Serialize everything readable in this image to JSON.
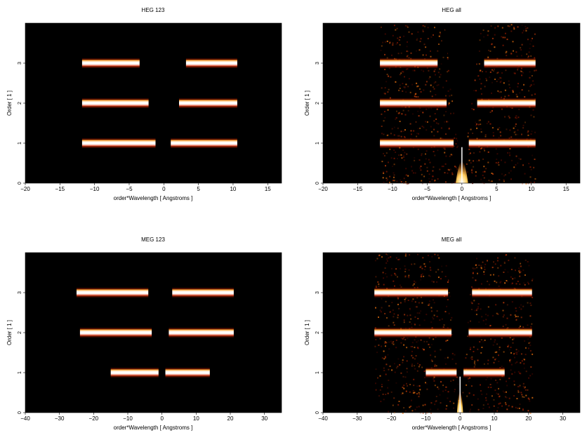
{
  "chart_data": [
    {
      "type": "heatmap",
      "title": "HEG 123",
      "xlabel": "order*Wavelength [ Angstroms ]",
      "ylabel": "Order [ 1 ]",
      "xlim": [
        -20,
        17
      ],
      "ylim": [
        0,
        4
      ],
      "xticks": [
        -20,
        -15,
        -10,
        -5,
        0,
        5,
        10,
        15
      ],
      "yticks": [
        0,
        1,
        2,
        3
      ],
      "background": "#000000",
      "orders": [
        {
          "order": 1,
          "segments": [
            [
              -11.8,
              -1.2
            ],
            [
              1.0,
              10.6
            ]
          ]
        },
        {
          "order": 2,
          "segments": [
            [
              -11.8,
              -2.2
            ],
            [
              2.2,
              10.6
            ]
          ]
        },
        {
          "order": 3,
          "segments": [
            [
              -11.8,
              -3.5
            ],
            [
              3.2,
              10.6
            ]
          ]
        }
      ],
      "diffuse": false
    },
    {
      "type": "heatmap",
      "title": "HEG all",
      "xlabel": "order*Wavelength [ Angstroms ]",
      "ylabel": "Order [ 1 ]",
      "xlim": [
        -20,
        17
      ],
      "ylim": [
        0,
        4
      ],
      "xticks": [
        -20,
        -15,
        -10,
        -5,
        0,
        5,
        10,
        15
      ],
      "yticks": [
        0,
        1,
        2,
        3
      ],
      "background": "#000000",
      "orders": [
        {
          "order": 1,
          "segments": [
            [
              -11.8,
              -1.2
            ],
            [
              1.0,
              10.6
            ]
          ]
        },
        {
          "order": 2,
          "segments": [
            [
              -11.8,
              -2.2
            ],
            [
              2.2,
              10.6
            ]
          ]
        },
        {
          "order": 3,
          "segments": [
            [
              -11.8,
              -3.5
            ],
            [
              3.2,
              10.6
            ]
          ]
        }
      ],
      "diffuse": true,
      "vee_top": [
        -2.5,
        2.8
      ],
      "zeroth_order": 0.0
    },
    {
      "type": "heatmap",
      "title": "MEG 123",
      "xlabel": "order*Wavelength [ Angstroms ]",
      "ylabel": "Order [ 1 ]",
      "xlim": [
        -40,
        35
      ],
      "ylim": [
        0,
        4
      ],
      "xticks": [
        -40,
        -30,
        -20,
        -10,
        0,
        10,
        20,
        30
      ],
      "yticks": [
        0,
        1,
        2,
        3
      ],
      "background": "#000000",
      "orders": [
        {
          "order": 1,
          "segments": [
            [
              -15.0,
              -1.0
            ],
            [
              1.0,
              14.0
            ]
          ]
        },
        {
          "order": 2,
          "segments": [
            [
              -24.0,
              -3.0
            ],
            [
              2.0,
              21.0
            ]
          ]
        },
        {
          "order": 3,
          "segments": [
            [
              -25.0,
              -4.0
            ],
            [
              3.0,
              21.0
            ]
          ]
        }
      ],
      "diffuse": false
    },
    {
      "type": "heatmap",
      "title": "MEG all",
      "xlabel": "order*Wavelength [ Angstroms ]",
      "ylabel": "Order [ 1 ]",
      "xlim": [
        -40,
        35
      ],
      "ylim": [
        0,
        4
      ],
      "xticks": [
        -40,
        -30,
        -20,
        -10,
        0,
        10,
        20,
        30
      ],
      "yticks": [
        0,
        1,
        2,
        3
      ],
      "background": "#000000",
      "orders": [
        {
          "order": 1,
          "segments": [
            [
              -10.0,
              -1.0
            ],
            [
              1.0,
              13.0
            ]
          ]
        },
        {
          "order": 2,
          "segments": [
            [
              -25.0,
              -2.5
            ],
            [
              2.5,
              21.0
            ]
          ]
        },
        {
          "order": 3,
          "segments": [
            [
              -25.0,
              -3.5
            ],
            [
              3.5,
              21.0
            ]
          ]
        }
      ],
      "diffuse": true,
      "vee_top": [
        -4.0,
        4.0
      ],
      "zeroth_order": 0.0
    }
  ]
}
